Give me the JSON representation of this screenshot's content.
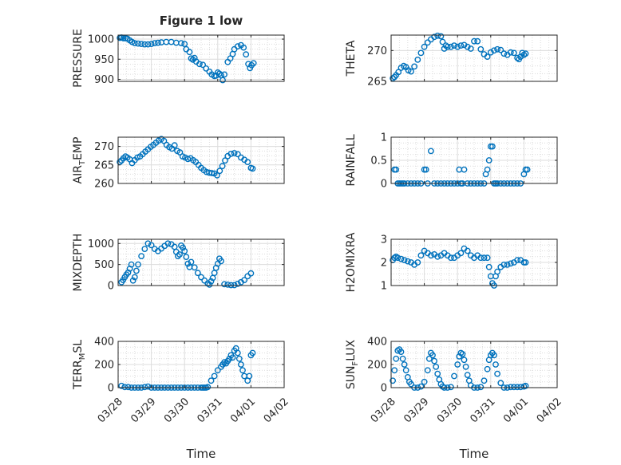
{
  "figure": {
    "title": "Figure 1 low",
    "x_axis_label": "Time",
    "x_tick_labels": [
      "03/28",
      "03/29",
      "03/30",
      "03/31",
      "04/01",
      "04/02"
    ]
  },
  "colors": {
    "marker": "#0072BD",
    "grid": "#dcdcdc",
    "axis": "#262626",
    "background": "#ffffff"
  },
  "chart_data": [
    {
      "type": "scatter",
      "ylabel": "PRESSURE",
      "ylim": [
        895,
        1010
      ],
      "yticks": [
        900,
        950,
        1000
      ],
      "ytick_labels": [
        "900",
        "950",
        "1000"
      ],
      "xlim": [
        0,
        5
      ],
      "grid": true,
      "x": [
        0.05,
        0.1,
        0.16,
        0.22,
        0.28,
        0.35,
        0.42,
        0.5,
        0.6,
        0.7,
        0.8,
        0.9,
        1.0,
        1.1,
        1.2,
        1.3,
        1.45,
        1.6,
        1.75,
        1.9,
        2.0,
        2.05,
        2.15,
        2.2,
        2.25,
        2.3,
        2.35,
        2.45,
        2.55,
        2.65,
        2.75,
        2.82,
        2.9,
        2.95,
        3.0,
        3.05,
        3.1,
        3.15,
        3.2,
        3.3,
        3.38,
        3.45,
        3.5,
        3.6,
        3.7,
        3.78,
        3.85,
        3.92,
        3.97,
        4.02,
        4.08
      ],
      "y": [
        1003,
        1004,
        1002,
        1002,
        1001,
        997,
        993,
        990,
        989,
        988,
        987,
        987,
        988,
        990,
        991,
        992,
        993,
        993,
        991,
        990,
        988,
        975,
        968,
        952,
        949,
        953,
        944,
        938,
        936,
        927,
        919,
        912,
        908,
        909,
        917,
        914,
        910,
        898,
        912,
        943,
        952,
        963,
        975,
        982,
        985,
        979,
        962,
        938,
        928,
        935,
        940
      ]
    },
    {
      "type": "scatter",
      "ylabel": "THETA",
      "ylim": [
        265,
        272.5
      ],
      "yticks": [
        265,
        270
      ],
      "ytick_labels": [
        "265",
        "270"
      ],
      "xlim": [
        0,
        5
      ],
      "grid": true,
      "x": [
        0.05,
        0.1,
        0.15,
        0.22,
        0.3,
        0.38,
        0.45,
        0.52,
        0.6,
        0.7,
        0.8,
        0.9,
        1.0,
        1.1,
        1.2,
        1.3,
        1.4,
        1.5,
        1.55,
        1.6,
        1.65,
        1.7,
        1.8,
        1.9,
        2.0,
        2.1,
        2.2,
        2.3,
        2.4,
        2.5,
        2.6,
        2.7,
        2.8,
        2.9,
        3.0,
        3.1,
        3.2,
        3.3,
        3.4,
        3.5,
        3.6,
        3.7,
        3.8,
        3.85,
        3.9,
        3.95,
        4.0,
        4.05
      ],
      "y": [
        265.5,
        265.7,
        266.0,
        266.5,
        267.2,
        267.5,
        267.3,
        266.8,
        266.6,
        267.4,
        268.5,
        269.6,
        270.6,
        271.3,
        271.8,
        272.2,
        272.4,
        272.3,
        271.4,
        270.3,
        270.8,
        270.6,
        270.6,
        270.8,
        270.6,
        270.8,
        270.9,
        270.6,
        270.3,
        271.5,
        271.5,
        270.2,
        269.4,
        269.0,
        269.7,
        270.0,
        270.2,
        270.1,
        269.5,
        269.3,
        269.7,
        269.6,
        268.8,
        268.6,
        269.0,
        269.6,
        269.3,
        269.5
      ]
    },
    {
      "type": "scatter",
      "ylabel": "AIR_TEMP",
      "ylabel_main": "AIR",
      "ylabel_sub": "T",
      "ylabel_rest": "EMP",
      "ylim": [
        260,
        272.5
      ],
      "yticks": [
        260,
        265,
        270
      ],
      "ytick_labels": [
        "260",
        "265",
        "270"
      ],
      "xlim": [
        0,
        5
      ],
      "grid": true,
      "x": [
        0.05,
        0.1,
        0.16,
        0.22,
        0.28,
        0.35,
        0.42,
        0.5,
        0.58,
        0.66,
        0.74,
        0.82,
        0.9,
        0.98,
        1.06,
        1.14,
        1.22,
        1.3,
        1.38,
        1.46,
        1.54,
        1.62,
        1.7,
        1.78,
        1.86,
        1.94,
        2.02,
        2.1,
        2.18,
        2.26,
        2.34,
        2.42,
        2.5,
        2.58,
        2.66,
        2.74,
        2.82,
        2.9,
        2.98,
        3.06,
        3.14,
        3.22,
        3.3,
        3.4,
        3.5,
        3.6,
        3.7,
        3.8,
        3.9,
        4.0,
        4.05
      ],
      "y": [
        265.8,
        266.2,
        266.8,
        267.3,
        267.0,
        266.5,
        265.5,
        266.3,
        267.0,
        267.3,
        267.9,
        268.6,
        269.2,
        269.9,
        270.4,
        271.0,
        271.6,
        272.0,
        271.5,
        270.4,
        269.8,
        269.4,
        270.3,
        268.8,
        268.4,
        267.3,
        267.0,
        266.6,
        266.8,
        266.3,
        265.8,
        265.0,
        264.2,
        263.6,
        263.1,
        262.9,
        262.8,
        262.7,
        262.2,
        263.4,
        264.7,
        266.2,
        267.4,
        268.0,
        268.2,
        267.9,
        267.0,
        266.4,
        265.8,
        264.2,
        264.0
      ]
    },
    {
      "type": "scatter",
      "ylabel": "RAINFALL",
      "ylim": [
        0,
        1
      ],
      "yticks": [
        0,
        0.5,
        1
      ],
      "ytick_labels": [
        "0",
        "0.5",
        "1"
      ],
      "xlim": [
        0,
        5
      ],
      "grid": true,
      "x": [
        0.1,
        0.15,
        0.2,
        0.25,
        0.3,
        0.35,
        0.4,
        0.5,
        0.6,
        0.7,
        0.8,
        0.9,
        1.0,
        1.05,
        1.1,
        1.2,
        1.3,
        1.4,
        1.5,
        1.6,
        1.7,
        1.8,
        1.9,
        2.0,
        2.05,
        2.1,
        2.15,
        2.2,
        2.3,
        2.4,
        2.5,
        2.6,
        2.7,
        2.8,
        2.85,
        2.9,
        2.95,
        3.0,
        3.05,
        3.1,
        3.15,
        3.2,
        3.3,
        3.4,
        3.5,
        3.6,
        3.7,
        3.8,
        3.9,
        4.0,
        4.05,
        4.1
      ],
      "y": [
        0.3,
        0.3,
        0.0,
        0.0,
        0.0,
        0.0,
        0.0,
        0.0,
        0.0,
        0.0,
        0.0,
        0.0,
        0.3,
        0.3,
        0.0,
        0.7,
        0.0,
        0.0,
        0.0,
        0.0,
        0.0,
        0.0,
        0.0,
        0.0,
        0.3,
        0.0,
        0.0,
        0.3,
        0.0,
        0.0,
        0.0,
        0.0,
        0.0,
        0.0,
        0.2,
        0.3,
        0.5,
        0.8,
        0.8,
        0.0,
        0.0,
        0.0,
        0.0,
        0.0,
        0.0,
        0.0,
        0.0,
        0.0,
        0.0,
        0.2,
        0.3,
        0.3
      ]
    },
    {
      "type": "scatter",
      "ylabel": "MIXDEPTH",
      "ylim": [
        0,
        1100
      ],
      "yticks": [
        0,
        500,
        1000
      ],
      "ytick_labels": [
        "0",
        "500",
        "1000"
      ],
      "xlim": [
        0,
        5
      ],
      "grid": true,
      "x": [
        0.1,
        0.15,
        0.2,
        0.25,
        0.3,
        0.35,
        0.4,
        0.45,
        0.5,
        0.55,
        0.6,
        0.7,
        0.8,
        0.9,
        1.0,
        1.1,
        1.2,
        1.3,
        1.4,
        1.5,
        1.6,
        1.7,
        1.75,
        1.8,
        1.85,
        1.9,
        1.95,
        2.0,
        2.05,
        2.1,
        2.15,
        2.2,
        2.3,
        2.4,
        2.5,
        2.6,
        2.7,
        2.75,
        2.8,
        2.85,
        2.9,
        2.95,
        3.0,
        3.05,
        3.1,
        3.2,
        3.3,
        3.4,
        3.5,
        3.6,
        3.7,
        3.8,
        3.9,
        4.0
      ],
      "y": [
        80,
        130,
        200,
        260,
        310,
        400,
        500,
        120,
        200,
        350,
        500,
        700,
        870,
        1000,
        960,
        870,
        820,
        880,
        940,
        1000,
        980,
        920,
        800,
        700,
        740,
        950,
        900,
        820,
        680,
        520,
        440,
        560,
        430,
        300,
        200,
        120,
        50,
        20,
        100,
        180,
        300,
        420,
        520,
        640,
        580,
        30,
        20,
        10,
        10,
        40,
        80,
        130,
        220,
        290
      ]
    },
    {
      "type": "scatter",
      "ylabel": "H2OMIXRA",
      "ylim": [
        1,
        3
      ],
      "yticks": [
        1,
        2,
        3
      ],
      "ytick_labels": [
        "1",
        "2",
        "3"
      ],
      "xlim": [
        0,
        5
      ],
      "grid": true,
      "x": [
        0.05,
        0.1,
        0.15,
        0.2,
        0.3,
        0.4,
        0.5,
        0.6,
        0.7,
        0.8,
        0.9,
        1.0,
        1.1,
        1.2,
        1.3,
        1.4,
        1.5,
        1.6,
        1.7,
        1.8,
        1.9,
        2.0,
        2.1,
        2.2,
        2.3,
        2.4,
        2.5,
        2.6,
        2.7,
        2.8,
        2.9,
        2.95,
        3.0,
        3.05,
        3.1,
        3.15,
        3.2,
        3.3,
        3.4,
        3.5,
        3.6,
        3.7,
        3.8,
        3.9,
        4.0,
        4.05
      ],
      "y": [
        2.1,
        2.2,
        2.25,
        2.2,
        2.15,
        2.1,
        2.05,
        2.0,
        1.9,
        2.0,
        2.3,
        2.5,
        2.4,
        2.3,
        2.35,
        2.25,
        2.3,
        2.4,
        2.3,
        2.2,
        2.2,
        2.3,
        2.4,
        2.6,
        2.5,
        2.3,
        2.2,
        2.3,
        2.2,
        2.2,
        2.2,
        1.8,
        1.4,
        1.1,
        1.0,
        1.4,
        1.6,
        1.8,
        1.9,
        1.9,
        1.95,
        2.0,
        2.1,
        2.1,
        2.0,
        2.0
      ]
    },
    {
      "type": "scatter",
      "ylabel": "TERR_MSL",
      "ylabel_main": "TERR",
      "ylabel_sub": "M",
      "ylabel_rest": "SL",
      "ylim": [
        0,
        400
      ],
      "yticks": [
        0,
        200,
        400
      ],
      "ytick_labels": [
        "0",
        "200",
        "400"
      ],
      "xlim": [
        0,
        5
      ],
      "grid": true,
      "x": [
        0.1,
        0.2,
        0.3,
        0.4,
        0.5,
        0.6,
        0.7,
        0.8,
        0.9,
        1.0,
        1.1,
        1.2,
        1.3,
        1.4,
        1.5,
        1.6,
        1.7,
        1.8,
        1.9,
        2.0,
        2.1,
        2.2,
        2.3,
        2.4,
        2.5,
        2.55,
        2.6,
        2.65,
        2.7,
        2.8,
        2.9,
        3.0,
        3.1,
        3.15,
        3.2,
        3.25,
        3.3,
        3.35,
        3.4,
        3.45,
        3.5,
        3.55,
        3.6,
        3.65,
        3.7,
        3.75,
        3.8,
        3.9,
        3.95,
        4.0,
        4.05
      ],
      "y": [
        15,
        5,
        5,
        0,
        0,
        0,
        0,
        5,
        10,
        0,
        0,
        0,
        0,
        0,
        0,
        0,
        0,
        0,
        0,
        0,
        0,
        0,
        0,
        0,
        0,
        0,
        0,
        0,
        5,
        60,
        100,
        150,
        180,
        200,
        220,
        210,
        230,
        250,
        280,
        260,
        320,
        340,
        300,
        250,
        200,
        150,
        100,
        60,
        100,
        280,
        300
      ]
    },
    {
      "type": "scatter",
      "ylabel": "SUN_FLUX",
      "ylabel_main": "SUN",
      "ylabel_sub": "F",
      "ylabel_rest": "LUX",
      "ylim": [
        0,
        400
      ],
      "yticks": [
        0,
        200,
        400
      ],
      "ytick_labels": [
        "0",
        "200",
        "400"
      ],
      "xlim": [
        0,
        5
      ],
      "grid": true,
      "x": [
        0.05,
        0.1,
        0.15,
        0.2,
        0.25,
        0.3,
        0.35,
        0.4,
        0.45,
        0.5,
        0.55,
        0.6,
        0.7,
        0.8,
        0.9,
        1.0,
        1.1,
        1.15,
        1.2,
        1.25,
        1.3,
        1.35,
        1.4,
        1.45,
        1.5,
        1.55,
        1.6,
        1.7,
        1.8,
        1.9,
        2.0,
        2.05,
        2.1,
        2.15,
        2.2,
        2.25,
        2.3,
        2.35,
        2.4,
        2.5,
        2.6,
        2.7,
        2.8,
        2.9,
        2.95,
        3.0,
        3.05,
        3.1,
        3.15,
        3.2,
        3.3,
        3.4,
        3.5,
        3.6,
        3.7,
        3.8,
        3.9,
        4.0,
        4.05
      ],
      "y": [
        60,
        150,
        250,
        320,
        330,
        310,
        250,
        200,
        150,
        90,
        50,
        30,
        0,
        0,
        10,
        50,
        150,
        250,
        300,
        280,
        230,
        180,
        120,
        70,
        30,
        10,
        0,
        0,
        5,
        100,
        200,
        270,
        300,
        290,
        240,
        180,
        110,
        60,
        20,
        0,
        0,
        5,
        60,
        160,
        240,
        280,
        300,
        280,
        200,
        120,
        40,
        0,
        0,
        5,
        5,
        5,
        5,
        10,
        15
      ]
    }
  ]
}
